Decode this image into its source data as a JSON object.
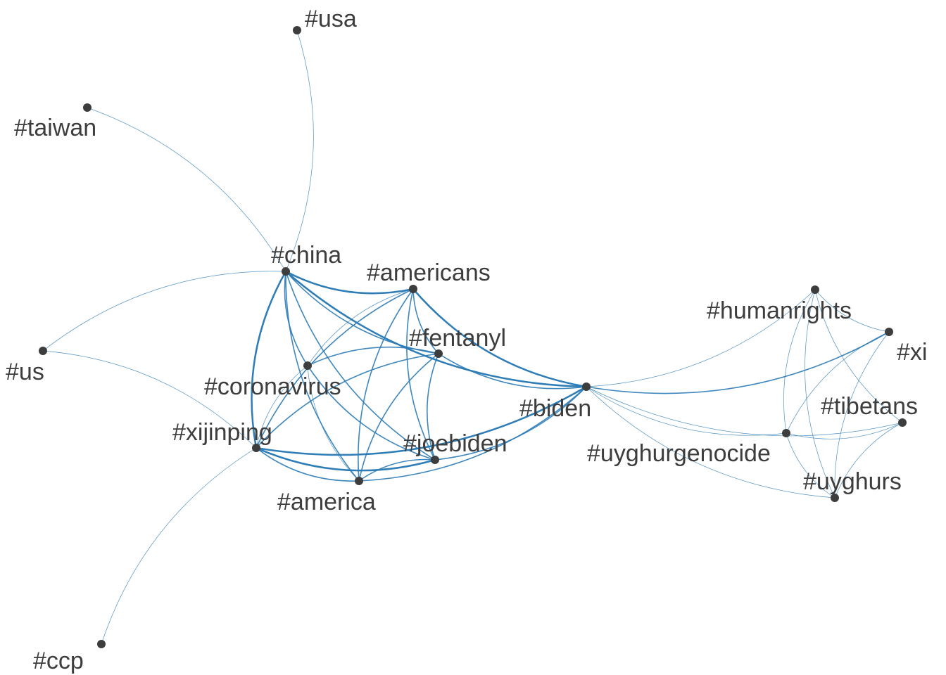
{
  "diagram": {
    "type": "network",
    "edge_color": "#2c7bb6",
    "node_color": "#3d3d3d",
    "nodes": [
      {
        "id": "usa",
        "label": "#usa"
      },
      {
        "id": "taiwan",
        "label": "#taiwan"
      },
      {
        "id": "china",
        "label": "#china"
      },
      {
        "id": "americans",
        "label": "#americans"
      },
      {
        "id": "fentanyl",
        "label": "#fentanyl"
      },
      {
        "id": "coronavirus",
        "label": "#coronavirus"
      },
      {
        "id": "us",
        "label": "#us"
      },
      {
        "id": "xijinping",
        "label": "#xijinping"
      },
      {
        "id": "joebiden",
        "label": "#joebiden"
      },
      {
        "id": "america",
        "label": "#america"
      },
      {
        "id": "biden",
        "label": "#biden"
      },
      {
        "id": "ccp",
        "label": "#ccp"
      },
      {
        "id": "humanrights",
        "label": "#humanrights"
      },
      {
        "id": "xi",
        "label": "#xi"
      },
      {
        "id": "tibetans",
        "label": "#tibetans"
      },
      {
        "id": "uyghurgenocide",
        "label": "#uyghurgenocide"
      },
      {
        "id": "uyghurs",
        "label": "#uyghurs"
      }
    ],
    "edges": [
      {
        "from": "china",
        "to": "usa",
        "weight": 1
      },
      {
        "from": "china",
        "to": "taiwan",
        "weight": 1
      },
      {
        "from": "china",
        "to": "us",
        "weight": 1
      },
      {
        "from": "china",
        "to": "americans",
        "weight": 3
      },
      {
        "from": "china",
        "to": "fentanyl",
        "weight": 2
      },
      {
        "from": "china",
        "to": "coronavirus",
        "weight": 2
      },
      {
        "from": "china",
        "to": "xijinping",
        "weight": 3
      },
      {
        "from": "china",
        "to": "joebiden",
        "weight": 2
      },
      {
        "from": "china",
        "to": "america",
        "weight": 2
      },
      {
        "from": "china",
        "to": "biden",
        "weight": 3
      },
      {
        "from": "americans",
        "to": "fentanyl",
        "weight": 2
      },
      {
        "from": "americans",
        "to": "coronavirus",
        "weight": 1
      },
      {
        "from": "americans",
        "to": "xijinping",
        "weight": 2
      },
      {
        "from": "americans",
        "to": "joebiden",
        "weight": 2
      },
      {
        "from": "americans",
        "to": "america",
        "weight": 2
      },
      {
        "from": "americans",
        "to": "biden",
        "weight": 3
      },
      {
        "from": "fentanyl",
        "to": "coronavirus",
        "weight": 2
      },
      {
        "from": "fentanyl",
        "to": "xijinping",
        "weight": 2
      },
      {
        "from": "fentanyl",
        "to": "joebiden",
        "weight": 2
      },
      {
        "from": "fentanyl",
        "to": "america",
        "weight": 2
      },
      {
        "from": "fentanyl",
        "to": "biden",
        "weight": 2
      },
      {
        "from": "coronavirus",
        "to": "xijinping",
        "weight": 1
      },
      {
        "from": "coronavirus",
        "to": "joebiden",
        "weight": 2
      },
      {
        "from": "coronavirus",
        "to": "america",
        "weight": 1
      },
      {
        "from": "xijinping",
        "to": "us",
        "weight": 1
      },
      {
        "from": "xijinping",
        "to": "ccp",
        "weight": 1
      },
      {
        "from": "xijinping",
        "to": "joebiden",
        "weight": 3
      },
      {
        "from": "xijinping",
        "to": "america",
        "weight": 2
      },
      {
        "from": "xijinping",
        "to": "biden",
        "weight": 3
      },
      {
        "from": "joebiden",
        "to": "america",
        "weight": 2
      },
      {
        "from": "joebiden",
        "to": "biden",
        "weight": 2
      },
      {
        "from": "america",
        "to": "biden",
        "weight": 2
      },
      {
        "from": "biden",
        "to": "humanrights",
        "weight": 1
      },
      {
        "from": "biden",
        "to": "xi",
        "weight": 2
      },
      {
        "from": "biden",
        "to": "uyghurgenocide",
        "weight": 1
      },
      {
        "from": "biden",
        "to": "tibetans",
        "weight": 1
      },
      {
        "from": "biden",
        "to": "uyghurs",
        "weight": 1
      },
      {
        "from": "humanrights",
        "to": "xi",
        "weight": 1
      },
      {
        "from": "humanrights",
        "to": "uyghurgenocide",
        "weight": 1
      },
      {
        "from": "humanrights",
        "to": "tibetans",
        "weight": 1
      },
      {
        "from": "humanrights",
        "to": "uyghurs",
        "weight": 1
      },
      {
        "from": "xi",
        "to": "uyghurgenocide",
        "weight": 1
      },
      {
        "from": "xi",
        "to": "uyghurs",
        "weight": 1
      },
      {
        "from": "uyghurgenocide",
        "to": "tibetans",
        "weight": 1
      },
      {
        "from": "uyghurgenocide",
        "to": "uyghurs",
        "weight": 1
      },
      {
        "from": "tibetans",
        "to": "uyghurs",
        "weight": 1
      }
    ]
  }
}
